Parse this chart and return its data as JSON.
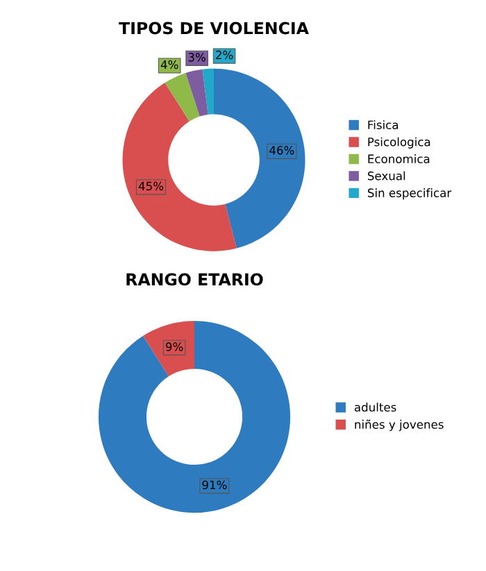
{
  "chart_data": [
    {
      "type": "donut",
      "title": "TIPOS DE VIOLENCIA",
      "categories": [
        "Fisica",
        "Psicologica",
        "Economica",
        "Sexual",
        "Sin especificar"
      ],
      "values": [
        46,
        45,
        4,
        3,
        2
      ],
      "colors": [
        "#2e7bbf",
        "#d94f4f",
        "#8fba4a",
        "#7d5ca0",
        "#22a9c9"
      ],
      "value_labels": [
        "46%",
        "45%",
        "4%",
        "3%",
        "2%"
      ],
      "legend": "right"
    },
    {
      "type": "donut",
      "title": "RANGO ETARIO",
      "categories": [
        "adultes",
        "niñes y jovenes"
      ],
      "values": [
        91,
        9
      ],
      "colors": [
        "#2e7bbf",
        "#d94f4f"
      ],
      "value_labels": [
        "91%",
        "9%"
      ],
      "legend": "right"
    }
  ]
}
